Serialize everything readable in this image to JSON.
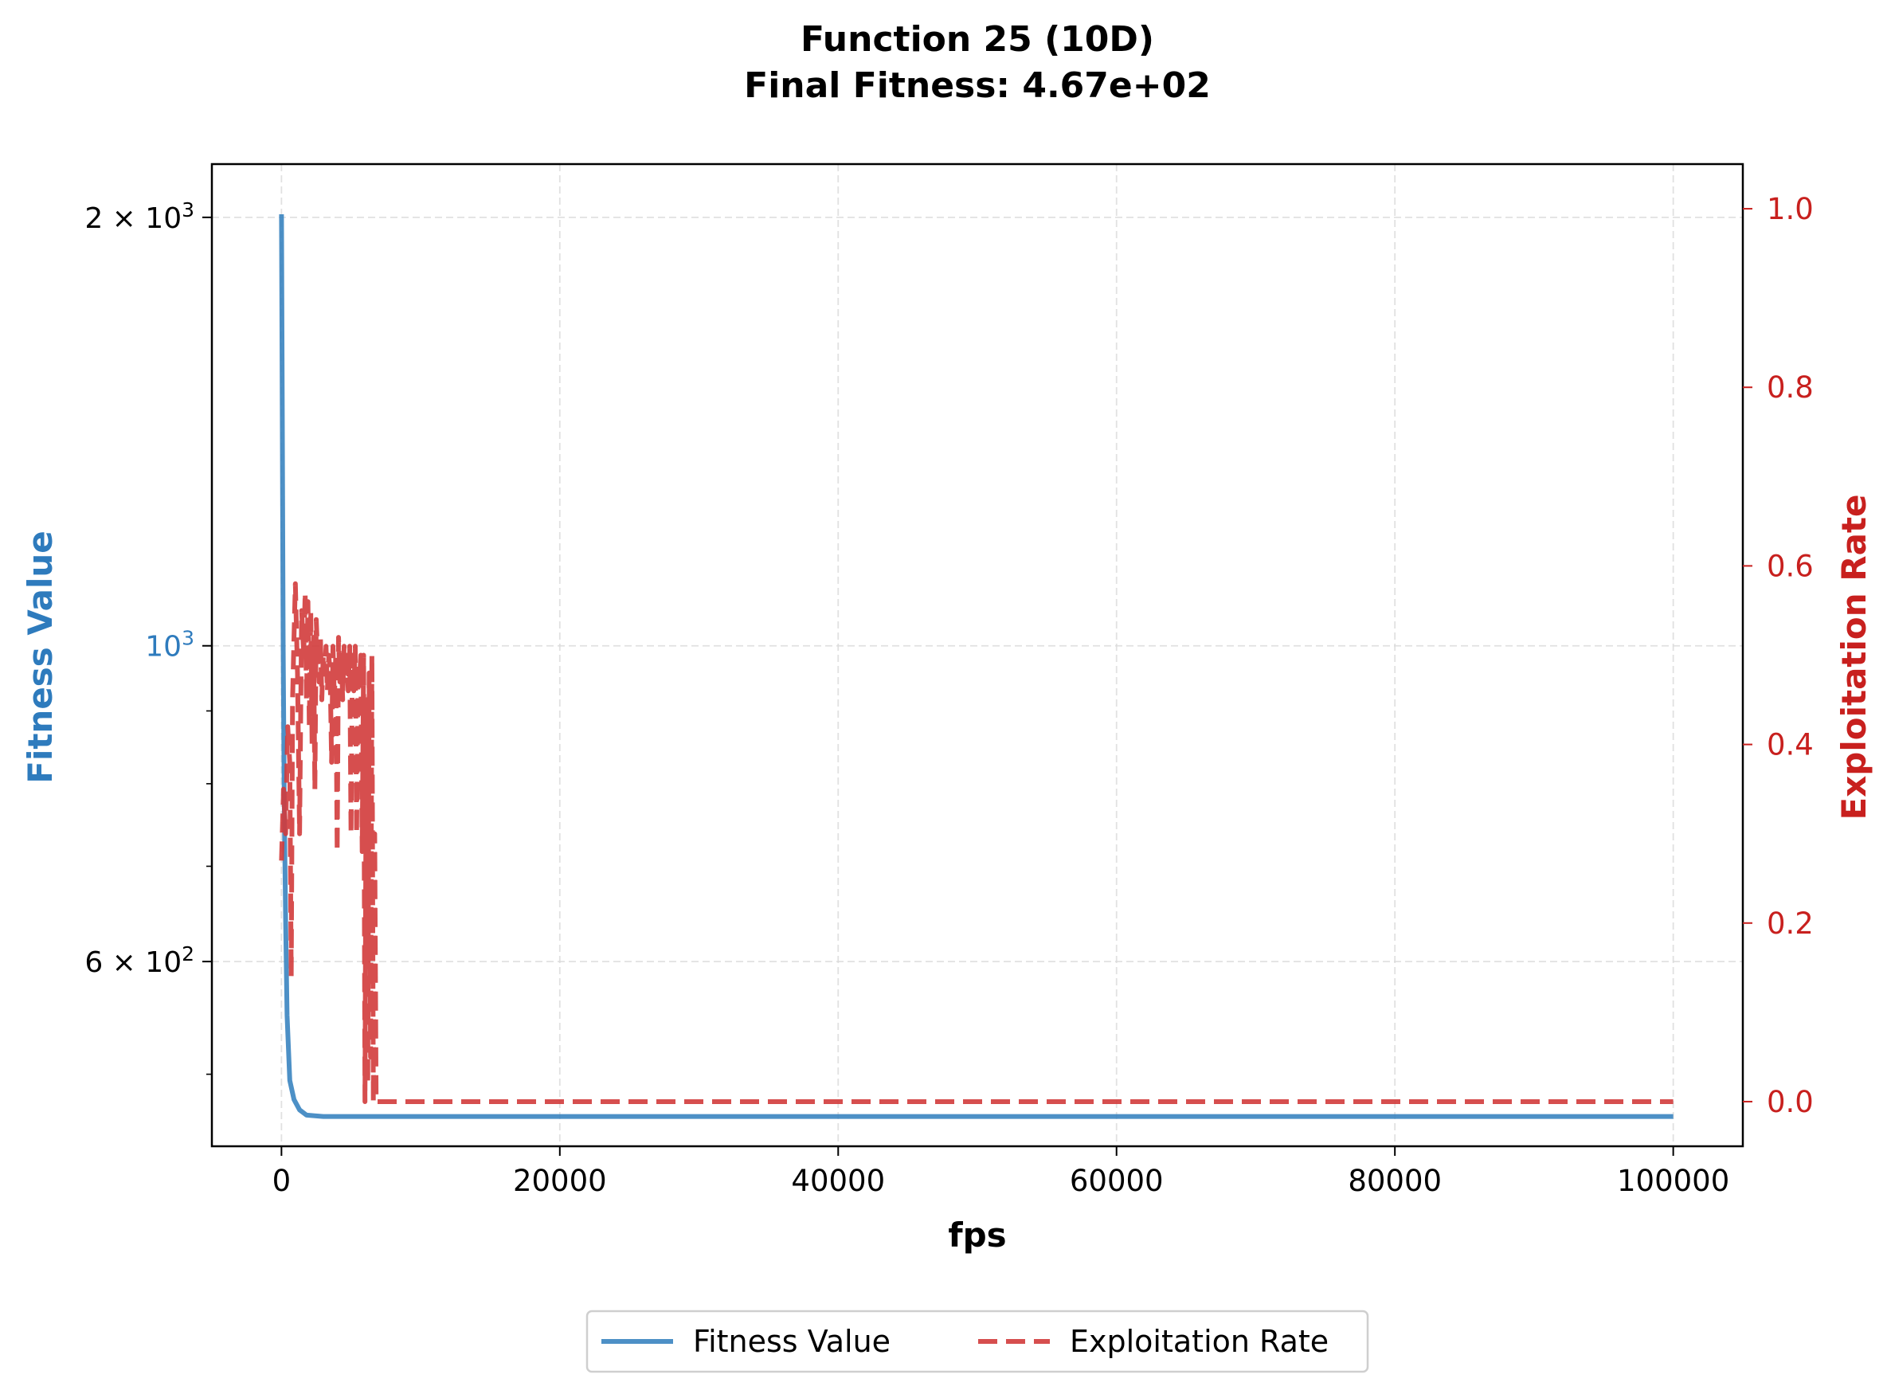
{
  "chart_data": {
    "type": "line",
    "title": "Function 25 (10D)",
    "subtitle": "Final Fitness: 4.67e+02",
    "xlabel": "fps",
    "ylabel_left": "Fitness Value",
    "ylabel_right": "Exploitation Rate",
    "xlim": [
      -5000,
      105000
    ],
    "ylim_left": [
      445,
      2180
    ],
    "ylim_right": [
      -0.05,
      1.05
    ],
    "yscale_left": "log",
    "yscale_right": "linear",
    "x_ticks": [
      0,
      20000,
      40000,
      60000,
      80000,
      100000
    ],
    "x_tick_labels": [
      "0",
      "20000",
      "40000",
      "60000",
      "80000",
      "100000"
    ],
    "y_left_major_ticks": [
      600,
      1000,
      2000
    ],
    "y_left_tick_labels": [
      {
        "value": 600,
        "base": "6 × 10",
        "exp": "2"
      },
      {
        "value": 1000,
        "base": "10",
        "exp": "3"
      },
      {
        "value": 2000,
        "base": "2 × 10",
        "exp": "3"
      }
    ],
    "y_left_minor_ticks": [
      500,
      700,
      800,
      900
    ],
    "y_right_ticks": [
      0.0,
      0.2,
      0.4,
      0.6,
      0.8,
      1.0
    ],
    "y_right_tick_labels": [
      "0.0",
      "0.2",
      "0.4",
      "0.6",
      "0.8",
      "1.0"
    ],
    "grid": true,
    "legend_position": "bottom-center",
    "series": [
      {
        "name": "Fitness Value",
        "axis": "left",
        "style": "solid",
        "color": "#3a84c0",
        "x": [
          0,
          60,
          120,
          200,
          300,
          400,
          600,
          900,
          1300,
          1800,
          3000,
          6000,
          20000,
          50000,
          100000
        ],
        "y": [
          2010,
          1450,
          1000,
          770,
          640,
          550,
          495,
          480,
          472,
          468,
          467,
          467,
          467,
          467,
          467
        ]
      },
      {
        "name": "Exploitation Rate",
        "axis": "right",
        "style": "dashed",
        "color": "#d13b3b",
        "x": [
          0,
          150,
          300,
          450,
          600,
          700,
          800,
          900,
          1000,
          1150,
          1300,
          1450,
          1600,
          1700,
          1800,
          1900,
          2000,
          2100,
          2200,
          2300,
          2400,
          2500,
          2600,
          2700,
          2800,
          2900,
          3000,
          3100,
          3200,
          3300,
          3400,
          3500,
          3600,
          3700,
          3800,
          3900,
          4000,
          4100,
          4200,
          4300,
          4400,
          4500,
          4600,
          4700,
          4800,
          4900,
          5000,
          5100,
          5200,
          5300,
          5400,
          5500,
          5600,
          5700,
          5800,
          5900,
          6000,
          6100,
          6200,
          6300,
          6400,
          6500,
          6600,
          6700,
          6800,
          7000,
          20000,
          50000,
          100000
        ],
        "y": [
          0.27,
          0.35,
          0.3,
          0.42,
          0.38,
          0.14,
          0.45,
          0.52,
          0.58,
          0.48,
          0.3,
          0.55,
          0.5,
          0.57,
          0.45,
          0.56,
          0.42,
          0.55,
          0.4,
          0.52,
          0.35,
          0.54,
          0.5,
          0.47,
          0.52,
          0.45,
          0.5,
          0.48,
          0.51,
          0.46,
          0.5,
          0.48,
          0.38,
          0.51,
          0.45,
          0.5,
          0.28,
          0.52,
          0.47,
          0.5,
          0.45,
          0.51,
          0.48,
          0.5,
          0.46,
          0.51,
          0.3,
          0.5,
          0.46,
          0.51,
          0.3,
          0.49,
          0.47,
          0.5,
          0.28,
          0.5,
          0.0,
          0.45,
          0.02,
          0.48,
          0.05,
          0.5,
          0.0,
          0.3,
          0.0,
          0.0,
          0.0,
          0.0,
          0.0
        ]
      }
    ]
  }
}
